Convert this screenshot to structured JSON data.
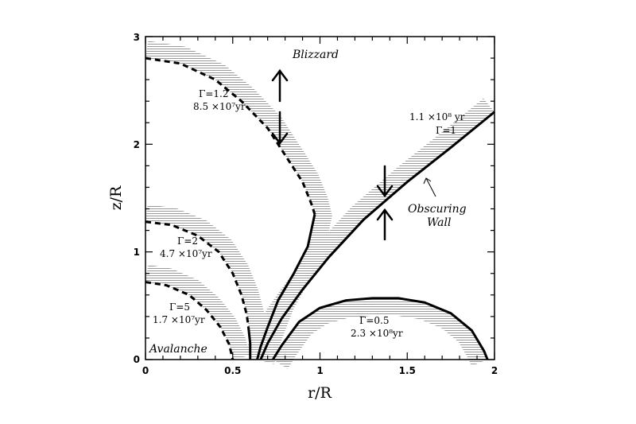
{
  "chart_data": {
    "type": "line",
    "title": "",
    "xlabel": "r/R",
    "ylabel": "z/R",
    "xlim": [
      0,
      2
    ],
    "ylim": [
      0,
      3
    ],
    "grid": false,
    "x_ticks": [
      "0",
      "0.5",
      "1",
      "1.5",
      "2"
    ],
    "y_ticks": [
      "0",
      "1",
      "2",
      "3"
    ],
    "series": [
      {
        "name": "Γ=1.2",
        "style": "dashed-then-solid",
        "band": "outer",
        "points": [
          [
            0,
            2.8
          ],
          [
            0.2,
            2.75
          ],
          [
            0.4,
            2.6
          ],
          [
            0.55,
            2.4
          ],
          [
            0.7,
            2.15
          ],
          [
            0.82,
            1.85
          ],
          [
            0.9,
            1.65
          ],
          [
            0.95,
            1.45
          ],
          [
            0.97,
            1.35
          ],
          [
            0.93,
            1.05
          ],
          [
            0.85,
            0.8
          ],
          [
            0.76,
            0.55
          ],
          [
            0.7,
            0.3
          ],
          [
            0.66,
            0.12
          ],
          [
            0.64,
            0
          ]
        ],
        "dash_until_x": 0.97
      },
      {
        "name": "Γ=2",
        "style": "dashed-then-solid",
        "band": "outer",
        "points": [
          [
            0,
            1.28
          ],
          [
            0.15,
            1.25
          ],
          [
            0.3,
            1.15
          ],
          [
            0.42,
            1.0
          ],
          [
            0.5,
            0.8
          ],
          [
            0.55,
            0.6
          ],
          [
            0.58,
            0.42
          ],
          [
            0.59,
            0.3
          ],
          [
            0.6,
            0.15
          ],
          [
            0.6,
            0
          ]
        ],
        "dash_until_x": 0.59
      },
      {
        "name": "Γ=5",
        "style": "dashed",
        "band": "outer",
        "points": [
          [
            0,
            0.72
          ],
          [
            0.12,
            0.69
          ],
          [
            0.25,
            0.6
          ],
          [
            0.35,
            0.46
          ],
          [
            0.43,
            0.3
          ],
          [
            0.48,
            0.14
          ],
          [
            0.5,
            0
          ]
        ]
      },
      {
        "name": "Γ=1",
        "style": "solid",
        "band": "below",
        "points": [
          [
            0.66,
            0
          ],
          [
            0.7,
            0.15
          ],
          [
            0.78,
            0.38
          ],
          [
            0.9,
            0.65
          ],
          [
            1.05,
            0.95
          ],
          [
            1.25,
            1.3
          ],
          [
            1.5,
            1.65
          ],
          [
            1.75,
            1.97
          ],
          [
            2.0,
            2.3
          ]
        ]
      },
      {
        "name": "Γ=0.5",
        "style": "solid",
        "band": "inner",
        "points": [
          [
            0.73,
            0
          ],
          [
            0.78,
            0.13
          ],
          [
            0.88,
            0.35
          ],
          [
            1.0,
            0.48
          ],
          [
            1.15,
            0.55
          ],
          [
            1.3,
            0.57
          ],
          [
            1.45,
            0.57
          ],
          [
            1.6,
            0.53
          ],
          [
            1.75,
            0.43
          ],
          [
            1.87,
            0.27
          ],
          [
            1.94,
            0.08
          ],
          [
            1.96,
            0
          ]
        ]
      }
    ],
    "annotations": {
      "blizzard": "Blizzard",
      "avalanche": "Avalanche",
      "g12_gamma": "Γ=1.2",
      "g12_time": "8.5 ×10⁷yr",
      "g2_gamma": "Γ=2",
      "g2_time": "4.7 ×10⁷yr",
      "g5_gamma": "Γ=5",
      "g5_time": "1.7 ×10⁷yr",
      "g1_time": "1.1 ×10⁸ yr",
      "g1_gamma": "Γ=1",
      "g05_gamma": "Γ=0.5",
      "g05_time": "2.3 ×10⁸yr",
      "wall_line1": "Obscuring",
      "wall_line2": "Wall"
    },
    "colors": {
      "line": "#000000",
      "band": "#9a9a9a"
    }
  }
}
